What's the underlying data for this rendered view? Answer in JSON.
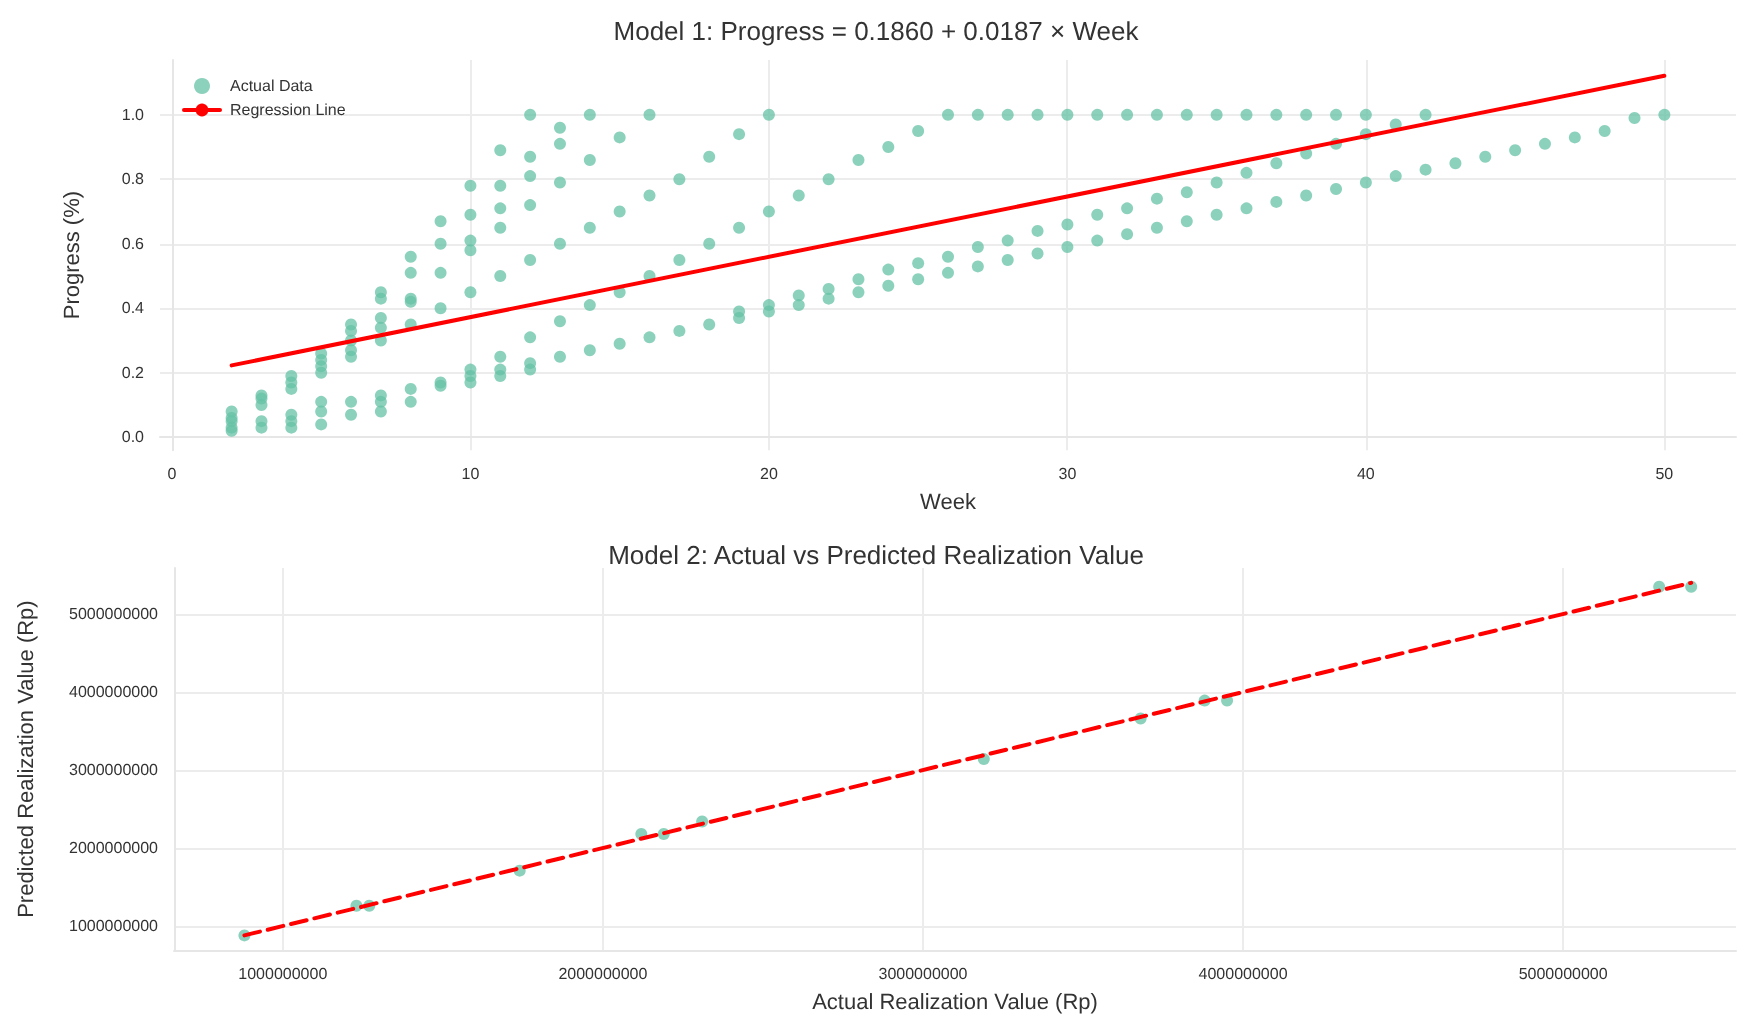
{
  "chart_data": [
    {
      "type": "scatter",
      "title": "Model 1: Progress = 0.1860 + 0.0187 × Week",
      "xlabel": "Week",
      "ylabel": "Progress (%)",
      "xlim": [
        -0.4,
        52.4
      ],
      "ylim": [
        -0.04,
        1.17
      ],
      "xticks": [
        0,
        10,
        20,
        30,
        40,
        50
      ],
      "yticks": [
        {
          "value": 0,
          "label": "0.0"
        },
        {
          "value": 0.2,
          "label": "0.2"
        },
        {
          "value": 0.4,
          "label": "0.4"
        },
        {
          "value": 0.6,
          "label": "0.6"
        },
        {
          "value": 0.8,
          "label": "0.8"
        },
        {
          "value": 1,
          "label": "1.0"
        }
      ],
      "grid": true,
      "legend": "top left",
      "marker": "circle",
      "series": [
        {
          "name": "Actual Data",
          "color": "#66c2a5",
          "x": [
            2,
            2,
            2,
            2,
            2,
            3,
            3,
            3,
            3,
            3,
            4,
            4,
            4,
            4,
            4,
            4,
            5,
            5,
            5,
            5,
            5,
            5,
            5,
            6,
            6,
            6,
            6,
            6,
            6,
            6,
            7,
            7,
            7,
            7,
            7,
            7,
            7,
            7,
            8,
            8,
            8,
            8,
            8,
            8,
            8,
            9,
            9,
            9,
            9,
            9,
            9,
            10,
            10,
            10,
            10,
            10,
            10,
            10,
            10,
            11,
            11,
            11,
            11,
            11,
            11,
            11,
            11,
            12,
            12,
            12,
            12,
            12,
            12,
            12,
            12,
            13,
            13,
            13,
            13,
            13,
            13,
            14,
            14,
            14,
            14,
            14,
            15,
            15,
            15,
            15,
            16,
            16,
            16,
            16,
            17,
            17,
            17,
            18,
            18,
            18,
            19,
            19,
            19,
            19,
            20,
            20,
            20,
            20,
            21,
            21,
            21,
            22,
            22,
            22,
            23,
            23,
            23,
            24,
            24,
            24,
            25,
            25,
            25,
            26,
            26,
            26,
            27,
            27,
            27,
            28,
            28,
            28,
            29,
            29,
            29,
            30,
            30,
            30,
            31,
            31,
            31,
            32,
            32,
            32,
            33,
            33,
            33,
            34,
            34,
            34,
            35,
            35,
            35,
            36,
            36,
            36,
            37,
            37,
            37,
            38,
            38,
            38,
            39,
            39,
            39,
            40,
            40,
            40,
            41,
            41,
            42,
            42,
            43,
            44,
            45,
            46,
            47,
            48,
            49,
            50
          ],
          "values": [
            0.08,
            0.06,
            0.05,
            0.03,
            0.02,
            0.13,
            0.12,
            0.1,
            0.05,
            0.03,
            0.19,
            0.17,
            0.15,
            0.07,
            0.05,
            0.03,
            0.26,
            0.24,
            0.22,
            0.2,
            0.11,
            0.08,
            0.04,
            0.35,
            0.33,
            0.3,
            0.27,
            0.25,
            0.11,
            0.07,
            0.45,
            0.43,
            0.37,
            0.34,
            0.3,
            0.13,
            0.11,
            0.08,
            0.56,
            0.51,
            0.43,
            0.42,
            0.35,
            0.15,
            0.11,
            0.67,
            0.6,
            0.51,
            0.4,
            0.17,
            0.16,
            0.78,
            0.69,
            0.61,
            0.58,
            0.45,
            0.21,
            0.19,
            0.17,
            0.89,
            0.78,
            0.71,
            0.65,
            0.5,
            0.25,
            0.21,
            0.19,
            1.0,
            0.87,
            0.81,
            0.72,
            0.55,
            0.31,
            0.23,
            0.21,
            0.96,
            0.91,
            0.79,
            0.6,
            0.36,
            0.25,
            1.0,
            0.86,
            0.65,
            0.41,
            0.27,
            0.93,
            0.7,
            0.45,
            0.29,
            1.0,
            0.75,
            0.5,
            0.31,
            0.8,
            0.55,
            0.33,
            0.87,
            0.6,
            0.35,
            0.94,
            0.65,
            0.39,
            0.37,
            1.0,
            0.7,
            0.41,
            0.39,
            0.75,
            0.44,
            0.41,
            0.8,
            0.46,
            0.43,
            0.86,
            0.49,
            0.45,
            0.9,
            0.52,
            0.47,
            0.95,
            0.54,
            0.49,
            1.0,
            0.56,
            0.51,
            1.0,
            0.59,
            0.53,
            1.0,
            0.61,
            0.55,
            1.0,
            0.64,
            0.57,
            1.0,
            0.66,
            0.59,
            1.0,
            0.69,
            0.61,
            1.0,
            0.71,
            0.63,
            1.0,
            0.74,
            0.65,
            1.0,
            0.76,
            0.67,
            1.0,
            0.79,
            0.69,
            1.0,
            0.82,
            0.71,
            1.0,
            0.85,
            0.73,
            1.0,
            0.88,
            0.75,
            1.0,
            0.91,
            0.77,
            1.0,
            0.94,
            0.79,
            0.97,
            0.81,
            1.0,
            0.83,
            0.85,
            0.87,
            0.89,
            0.91,
            0.93,
            0.95,
            0.99,
            1.0
          ]
        },
        {
          "type": "line",
          "name": "Regression Line",
          "color": "#ff0000",
          "marker": "none",
          "line_style": "solid",
          "x": [
            2,
            50
          ],
          "values": [
            0.223,
            1.121
          ]
        }
      ]
    },
    {
      "type": "scatter",
      "title": "Model 2: Actual vs Predicted Realization Value",
      "xlabel": "Actual Realization Value (Rp)",
      "ylabel": "Predicted Realization Value (Rp)",
      "xlim": [
        660000000,
        5540000000
      ],
      "ylim": [
        690000000,
        5590000000
      ],
      "xticks": [
        1000000000,
        2000000000,
        3000000000,
        4000000000,
        5000000000
      ],
      "yticks": [
        1000000000,
        2000000000,
        3000000000,
        4000000000,
        5000000000
      ],
      "grid": true,
      "legend": false,
      "marker": "circle",
      "series": [
        {
          "color": "#66c2a5",
          "x": [
            880000000,
            1230000000,
            1270000000,
            1740000000,
            2120000000,
            2190000000,
            2310000000,
            3190000000,
            3680000000,
            3880000000,
            3950000000,
            5300000000,
            5400000000
          ],
          "values": [
            880000000,
            1260000000,
            1260000000,
            1710000000,
            2180000000,
            2180000000,
            2340000000,
            3140000000,
            3660000000,
            3890000000,
            3890000000,
            5350000000,
            5350000000
          ]
        },
        {
          "type": "line",
          "color": "#ff0000",
          "marker": "none",
          "line_style": "dashed",
          "x": [
            880000000,
            5400000000
          ],
          "values": [
            880000000,
            5400000000
          ]
        }
      ]
    }
  ]
}
